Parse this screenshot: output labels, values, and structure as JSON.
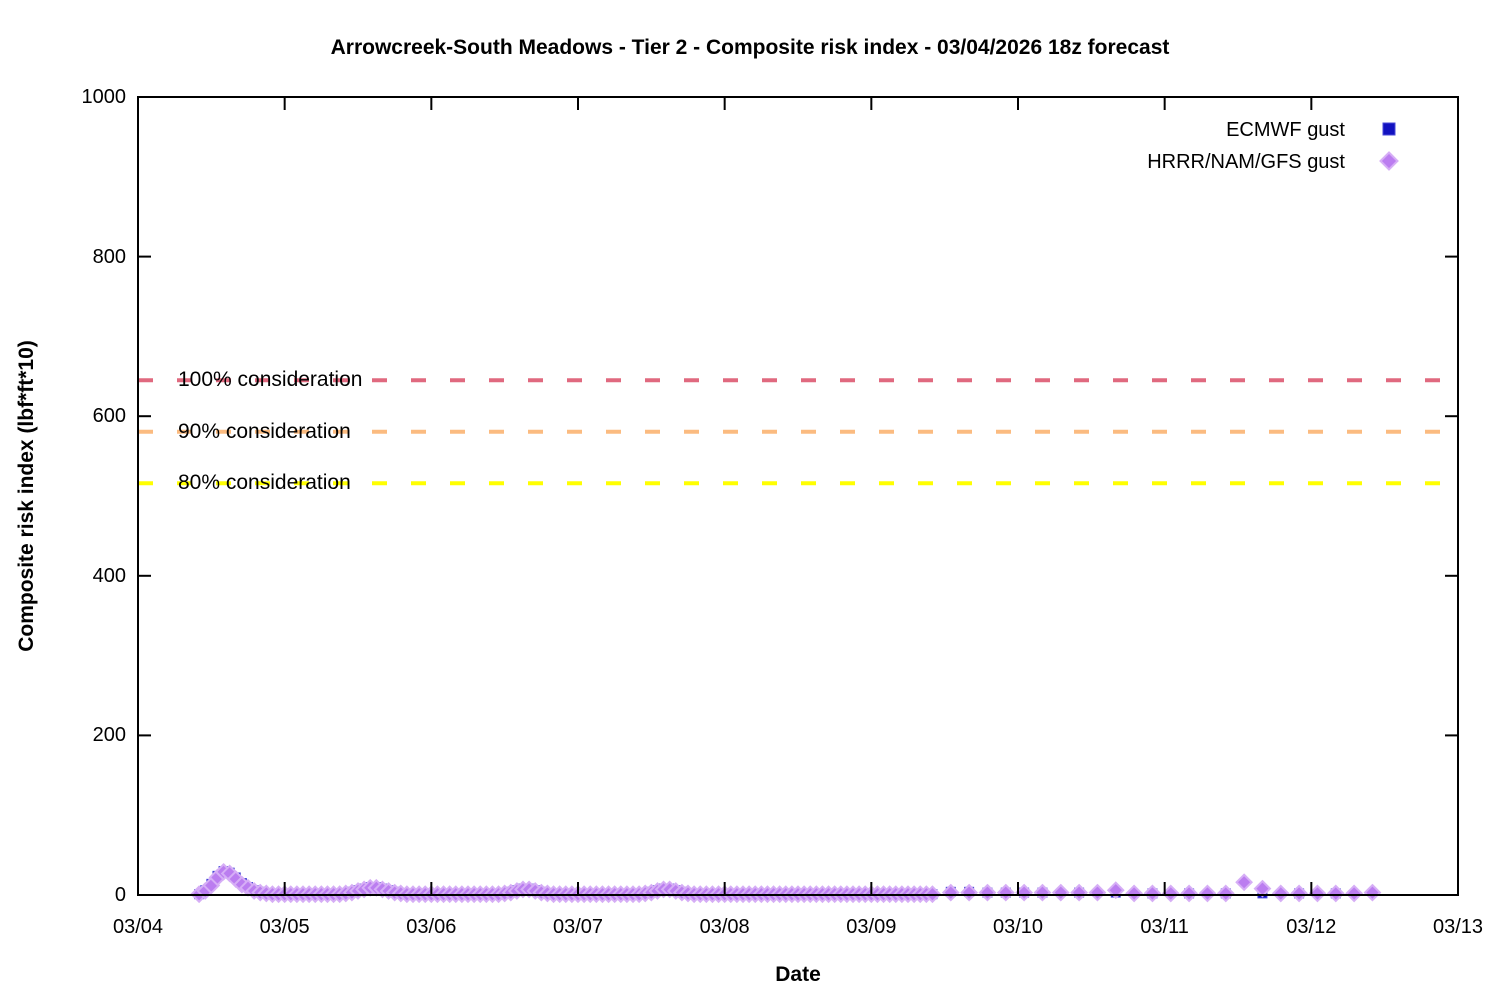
{
  "title": "Arrowcreek-South Meadows - Tier 2 - Composite risk index - 03/04/2026 18z forecast",
  "chart_data": {
    "type": "scatter",
    "title": "Arrowcreek-South Meadows - Tier 2 - Composite risk index - 03/04/2026 18z forecast",
    "xlabel": "Date",
    "ylabel": "Composite risk index (lbf*ft*10)",
    "x_ticks": [
      "03/04",
      "03/05",
      "03/06",
      "03/07",
      "03/08",
      "03/09",
      "03/10",
      "03/11",
      "03/12",
      "03/13"
    ],
    "x_range_days": 9,
    "y_ticks": [
      0,
      200,
      400,
      600,
      800,
      1000
    ],
    "ylim": [
      0,
      1000
    ],
    "grid": false,
    "legend_position": "inside-top-right",
    "x_encoding": "hours since 03/04 00:00 local",
    "thresholds": [
      {
        "label": "100% consideration",
        "value": 645,
        "color": "#e0697f"
      },
      {
        "label": "90% consideration",
        "value": 580.5,
        "color": "#fbbb80"
      },
      {
        "label": "80% consideration",
        "value": 516,
        "color": "#ffff00"
      }
    ],
    "series": [
      {
        "name": "ECMWF gust",
        "marker": "square",
        "color": "#1212c0",
        "edge_color": "#4a4ad8",
        "hourly": {
          "start_hour": 10,
          "step_hours": 1,
          "values": [
            1,
            6,
            14,
            24,
            30,
            28,
            22,
            15,
            10,
            6,
            4,
            2,
            1,
            1,
            1,
            1,
            1,
            1,
            1,
            1,
            1,
            1,
            1,
            1,
            2,
            4,
            6,
            8,
            10,
            10,
            8,
            6,
            4,
            2,
            1,
            1,
            1,
            1,
            1,
            1,
            1,
            1,
            1,
            1,
            1,
            1,
            1,
            1,
            1,
            1,
            2,
            4,
            6,
            8,
            8,
            6,
            4,
            2,
            1,
            1,
            1,
            1,
            1,
            1,
            1,
            1,
            1,
            1,
            1,
            1,
            1,
            1,
            1,
            2,
            4,
            6,
            8,
            8,
            6,
            4,
            2,
            1,
            1,
            1,
            1,
            1,
            1,
            1,
            1,
            1,
            1,
            1,
            1,
            1,
            1,
            1,
            1,
            1,
            1,
            1,
            1,
            1,
            1,
            1,
            1,
            1,
            1,
            1,
            1,
            1,
            1,
            1,
            1,
            1,
            1,
            1,
            1,
            1,
            1,
            1,
            1
          ]
        },
        "extra_points": [
          [
            133,
            4
          ],
          [
            136,
            4
          ],
          [
            139,
            3
          ],
          [
            142,
            3
          ],
          [
            145,
            3
          ],
          [
            148,
            3
          ],
          [
            154,
            3
          ],
          [
            160,
            3
          ],
          [
            166,
            2
          ],
          [
            172,
            2
          ],
          [
            178,
            2
          ],
          [
            184,
            2
          ],
          [
            190,
            2
          ],
          [
            196,
            2
          ]
        ]
      },
      {
        "name": "HRRR/NAM/GFS gust",
        "marker": "diamond",
        "color": "#bb7df0",
        "edge_color": "#d6aef6",
        "hourly": {
          "start_hour": 10,
          "step_hours": 1,
          "values": [
            1,
            5,
            12,
            22,
            29,
            27,
            20,
            13,
            9,
            5,
            3,
            2,
            1,
            1,
            1,
            1,
            1,
            1,
            1,
            1,
            1,
            1,
            1,
            1,
            2,
            3,
            5,
            7,
            9,
            9,
            7,
            5,
            3,
            2,
            1,
            1,
            1,
            1,
            1,
            1,
            1,
            1,
            1,
            1,
            1,
            1,
            1,
            1,
            1,
            1,
            2,
            3,
            5,
            7,
            7,
            5,
            3,
            2,
            1,
            1,
            1,
            1,
            1,
            1,
            1,
            1,
            1,
            1,
            1,
            1,
            1,
            1,
            1,
            2,
            3,
            5,
            7,
            7,
            5,
            3,
            2,
            1,
            1,
            1,
            1,
            1,
            1,
            1,
            1,
            1,
            1,
            1,
            1,
            1,
            1,
            1,
            1,
            1,
            1,
            1,
            1,
            1,
            1,
            1,
            1,
            1,
            1,
            1,
            1,
            1,
            1,
            1,
            1,
            1,
            1,
            1,
            1,
            1,
            1,
            1,
            1
          ]
        },
        "extra_points": [
          [
            133,
            3
          ],
          [
            136,
            3
          ],
          [
            139,
            3
          ],
          [
            142,
            3
          ],
          [
            145,
            3
          ],
          [
            148,
            3
          ],
          [
            151,
            3
          ],
          [
            154,
            3
          ],
          [
            157,
            3
          ],
          [
            160,
            6
          ],
          [
            163,
            2
          ],
          [
            166,
            2
          ],
          [
            169,
            2
          ],
          [
            172,
            2
          ],
          [
            175,
            2
          ],
          [
            178,
            2
          ],
          [
            181,
            16
          ],
          [
            184,
            8
          ],
          [
            187,
            2
          ],
          [
            190,
            2
          ],
          [
            193,
            2
          ],
          [
            196,
            2
          ],
          [
            199,
            2
          ],
          [
            202,
            3
          ]
        ]
      }
    ]
  }
}
